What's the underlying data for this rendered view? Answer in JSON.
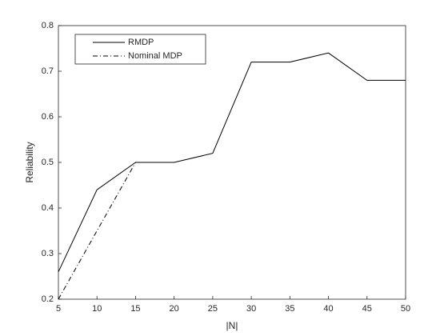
{
  "chart_data": {
    "type": "line",
    "xlabel": "|N|",
    "ylabel": "Reliability",
    "xlim": [
      5,
      50
    ],
    "xticks": [
      5,
      10,
      15,
      20,
      25,
      30,
      35,
      40,
      45,
      50
    ],
    "ylim": [
      0.2,
      0.8
    ],
    "yticks": [
      0.2,
      0.3,
      0.4,
      0.5,
      0.6,
      0.7,
      0.8
    ],
    "legend": "upper left",
    "series": [
      {
        "name": "RMDP",
        "color": "#000000",
        "linestyle": "solid",
        "x": [
          5,
          10,
          15,
          20,
          25,
          30,
          35,
          40,
          45,
          50
        ],
        "values": [
          0.26,
          0.44,
          0.5,
          0.5,
          0.52,
          0.72,
          0.72,
          0.74,
          0.68,
          0.68
        ]
      },
      {
        "name": "Nominal MDP",
        "color": "#000000",
        "linestyle": "dashdot",
        "x": [
          5,
          10,
          15
        ],
        "values": [
          0.2,
          0.35,
          0.5
        ]
      }
    ]
  }
}
